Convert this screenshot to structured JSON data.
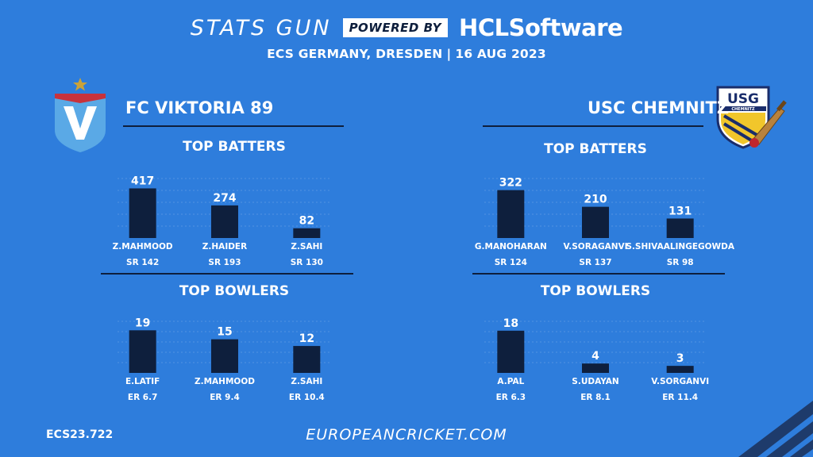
{
  "header": {
    "stats_gun": "STATS GUN",
    "powered_by": "POWERED BY",
    "hcl_software": "HCLSoftware",
    "event": "ECS GERMANY, DRESDEN",
    "separator": "|",
    "date": "16 AUG 2023"
  },
  "colors": {
    "background": "#2e7ddc",
    "bar": "#0e1f3d",
    "rule": "#0e1f3d",
    "text": "#ffffff"
  },
  "teams": [
    {
      "name": "FC VIKTORIA 89",
      "logo": "viktoria-shield-logo",
      "batters_title": "TOP BATTERS",
      "bowlers_title": "TOP BOWLERS"
    },
    {
      "name": "USC CHEMNITZ",
      "logo": "usg-chemnitz-shield-logo",
      "logo_text": "USG",
      "logo_subtext": "CHEMNITZ",
      "batters_title": "TOP BATTERS",
      "bowlers_title": "TOP BOWLERS"
    }
  ],
  "chart_data": [
    {
      "type": "bar",
      "title": "TOP BATTERS",
      "team": "FC VIKTORIA 89",
      "categories": [
        "Z.MAHMOOD",
        "Z.HAIDER",
        "Z.SAHI"
      ],
      "values": [
        417,
        274,
        82
      ],
      "sublabels": [
        "SR 142",
        "SR 193",
        "SR 130"
      ],
      "ylim": [
        0,
        500
      ],
      "grid": true
    },
    {
      "type": "bar",
      "title": "TOP BOWLERS",
      "team": "FC VIKTORIA 89",
      "categories": [
        "E.LATIF",
        "Z.MAHMOOD",
        "Z.SAHI"
      ],
      "values": [
        19,
        15,
        12
      ],
      "sublabels": [
        "ER 6.7",
        "ER 9.4",
        "ER 10.4"
      ],
      "ylim": [
        0,
        23
      ],
      "grid": true
    },
    {
      "type": "bar",
      "title": "TOP BATTERS",
      "team": "USC CHEMNITZ",
      "categories": [
        "G.MANOHARAN",
        "V.SORAGANVI",
        "S.SHIVAALINGEGOWDA"
      ],
      "values": [
        322,
        210,
        131
      ],
      "sublabels": [
        "SR 124",
        "SR 137",
        "SR 98"
      ],
      "ylim": [
        0,
        400
      ],
      "grid": true
    },
    {
      "type": "bar",
      "title": "TOP BOWLERS",
      "team": "USC CHEMNITZ",
      "categories": [
        "A.PAL",
        "S.UDAYAN",
        "V.SORGANVI"
      ],
      "values": [
        18,
        4,
        3
      ],
      "sublabels": [
        "ER 6.3",
        "ER 8.1",
        "ER 11.4"
      ],
      "ylim": [
        0,
        22
      ],
      "grid": true
    }
  ],
  "footer": {
    "code": "ECS23.722",
    "website": "EUROPEANCRICKET.COM"
  }
}
